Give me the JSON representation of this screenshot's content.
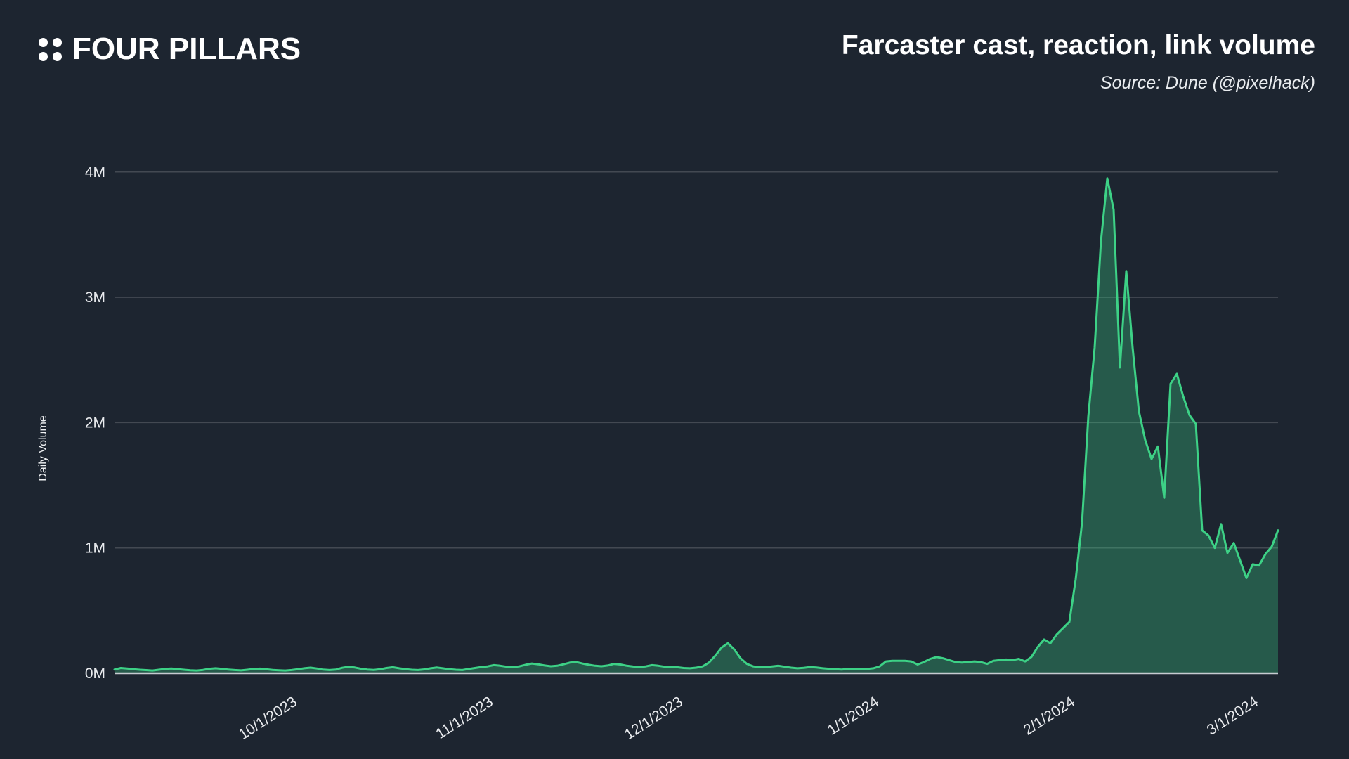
{
  "header": {
    "logo_text": "FOUR PILLARS"
  },
  "chart_data": {
    "type": "area",
    "title": "Farcaster cast, reaction, link volume",
    "source": "Source: Dune (@pixelhack)",
    "ylabel": "Daily Volume",
    "unit": "millions",
    "ylim": [
      0,
      4.35
    ],
    "grid": "horizontal-only",
    "legend": "none",
    "y_ticks": [
      {
        "label": "0M",
        "value": 0
      },
      {
        "label": "1M",
        "value": 1
      },
      {
        "label": "2M",
        "value": 2
      },
      {
        "label": "3M",
        "value": 3
      },
      {
        "label": "4M",
        "value": 4
      }
    ],
    "x_ticks": [
      {
        "label": "10/1/2023",
        "day_index": 28
      },
      {
        "label": "11/1/2023",
        "day_index": 59
      },
      {
        "label": "12/1/2023",
        "day_index": 89
      },
      {
        "label": "1/1/2024",
        "day_index": 120
      },
      {
        "label": "2/1/2024",
        "day_index": 151
      },
      {
        "label": "3/1/2024",
        "day_index": 180
      }
    ],
    "series": [
      {
        "name": "daily_volume_millions",
        "start_date": "9/3/2023",
        "end_date": "3/5/2024",
        "interval": "daily",
        "values": [
          0.03,
          0.042,
          0.038,
          0.032,
          0.028,
          0.025,
          0.022,
          0.028,
          0.035,
          0.038,
          0.033,
          0.028,
          0.024,
          0.022,
          0.027,
          0.036,
          0.04,
          0.035,
          0.03,
          0.026,
          0.023,
          0.028,
          0.034,
          0.037,
          0.032,
          0.027,
          0.024,
          0.022,
          0.026,
          0.032,
          0.04,
          0.045,
          0.038,
          0.03,
          0.026,
          0.03,
          0.044,
          0.052,
          0.046,
          0.036,
          0.03,
          0.027,
          0.032,
          0.042,
          0.048,
          0.04,
          0.033,
          0.028,
          0.026,
          0.031,
          0.04,
          0.046,
          0.039,
          0.032,
          0.028,
          0.026,
          0.034,
          0.042,
          0.05,
          0.055,
          0.065,
          0.06,
          0.052,
          0.048,
          0.055,
          0.068,
          0.078,
          0.072,
          0.062,
          0.056,
          0.06,
          0.072,
          0.085,
          0.09,
          0.078,
          0.068,
          0.06,
          0.056,
          0.062,
          0.075,
          0.07,
          0.06,
          0.054,
          0.05,
          0.055,
          0.065,
          0.06,
          0.052,
          0.048,
          0.048,
          0.042,
          0.04,
          0.045,
          0.055,
          0.085,
          0.14,
          0.205,
          0.24,
          0.19,
          0.12,
          0.075,
          0.055,
          0.048,
          0.05,
          0.055,
          0.06,
          0.052,
          0.045,
          0.04,
          0.044,
          0.05,
          0.046,
          0.04,
          0.036,
          0.032,
          0.03,
          0.034,
          0.036,
          0.032,
          0.034,
          0.04,
          0.055,
          0.095,
          0.1,
          0.1,
          0.1,
          0.095,
          0.07,
          0.09,
          0.115,
          0.13,
          0.12,
          0.105,
          0.09,
          0.085,
          0.09,
          0.095,
          0.09,
          0.075,
          0.1,
          0.105,
          0.11,
          0.105,
          0.115,
          0.095,
          0.13,
          0.21,
          0.27,
          0.24,
          0.31,
          0.36,
          0.41,
          0.75,
          1.2,
          2.05,
          2.6,
          3.45,
          3.95,
          3.7,
          2.44,
          3.21,
          2.6,
          2.09,
          1.86,
          1.71,
          1.81,
          1.4,
          2.31,
          2.39,
          2.21,
          2.06,
          1.99,
          1.14,
          1.1,
          1.0,
          1.19,
          0.96,
          1.04,
          0.9,
          0.76,
          0.87,
          0.86,
          0.95,
          1.01,
          1.14
        ]
      }
    ],
    "colors": {
      "background": "#1d2530",
      "line": "#3dd186",
      "fill": "rgba(61, 214, 138, 0.30)",
      "gridline": "rgba(255, 255, 255, 0.17)",
      "axis_line": "#c6cbd1",
      "tick_text": "#e9ebee",
      "title_text": "#ffffff"
    }
  }
}
